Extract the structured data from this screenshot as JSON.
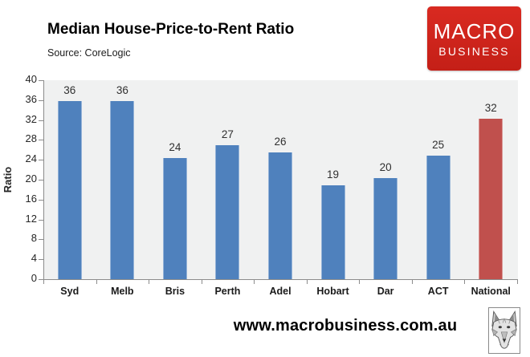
{
  "header": {
    "title": "Median House-Price-to-Rent Ratio",
    "source": "Source: CoreLogic"
  },
  "logo": {
    "line1": "MACRO",
    "line2": "BUSINESS",
    "bg_color": "#d92a21",
    "text_color": "#ffffff"
  },
  "footer": {
    "website": "www.macrobusiness.com.au",
    "wolf_icon": "wolf-head-sketch"
  },
  "chart_data": {
    "type": "bar",
    "title": "Median House-Price-to-Rent Ratio",
    "categories": [
      "Syd",
      "Melb",
      "Bris",
      "Perth",
      "Adel",
      "Hobart",
      "Dar",
      "ACT",
      "National"
    ],
    "values": [
      36,
      36,
      24,
      27,
      26,
      19,
      20,
      25,
      32
    ],
    "bar_heights_estimated": [
      35.8,
      35.8,
      24.3,
      26.9,
      25.5,
      18.9,
      20.3,
      24.9,
      32.2
    ],
    "xlabel": "",
    "ylabel": "Ratio",
    "ylim": [
      0,
      40
    ],
    "ytick_step": 4,
    "grid": false,
    "legend": "none",
    "bar_color": "#4f81bd",
    "highlight_index": 8,
    "highlight_color": "#c0504d",
    "plot_bg": "#f0f1f1",
    "axis_color": "#8c8c8c"
  }
}
